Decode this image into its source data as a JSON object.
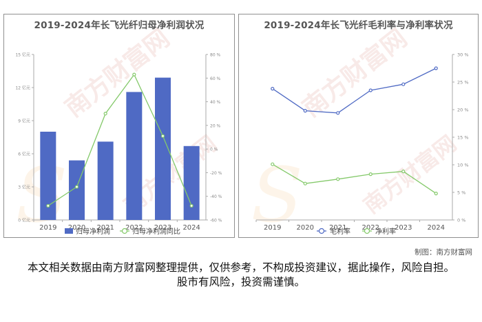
{
  "credit": "制图：南方财富网",
  "disclaimer": "本文相关数据由南方财富网整理提供，仅供参考，不构成投资建议，据此操作，风险自担。股市有风险，投资需谨慎。",
  "watermark": "南方财富网",
  "colors": {
    "bar": "#4f6ac4",
    "green": "#84c96a",
    "blue": "#4f6ac4",
    "axis": "#aaaaaa",
    "text": "#888888"
  },
  "chart_data": [
    {
      "type": "bar",
      "title": "2019-2024年长飞光纤归母净利润状况",
      "categories": [
        "2019",
        "2020",
        "2021",
        "2022",
        "2023",
        "2024"
      ],
      "ylim": [
        0,
        15
      ],
      "yticks": [
        "0 亿元",
        "3 亿元",
        "6 亿元",
        "9 亿元",
        "12 亿元",
        "15 亿元"
      ],
      "y2lim": [
        -60,
        80
      ],
      "y2ticks": [
        "-60 %",
        "-40 %",
        "-20 %",
        "0 %",
        "20 %",
        "40 %",
        "60 %",
        "80 %"
      ],
      "series": [
        {
          "name": "归母净利润",
          "type": "bar",
          "values": [
            8.0,
            5.4,
            7.1,
            11.6,
            12.9,
            6.7
          ]
        },
        {
          "name": "归母净利润同比",
          "type": "line",
          "axis": "right",
          "values": [
            -48,
            -32,
            30,
            63,
            11,
            -48
          ]
        }
      ],
      "legend": "bottom",
      "grid": false
    },
    {
      "type": "line",
      "title": "2019-2024年长飞光纤毛利率与净利率状况",
      "categories": [
        "2019",
        "2020",
        "2021",
        "2022",
        "2023",
        "2024"
      ],
      "ylim": [
        0,
        30
      ],
      "yticks": [
        "0 %",
        "5 %",
        "10 %",
        "15 %",
        "20 %",
        "25 %",
        "30 %"
      ],
      "series": [
        {
          "name": "毛利率",
          "values": [
            23.8,
            19.8,
            19.4,
            23.5,
            24.6,
            27.5
          ]
        },
        {
          "name": "净利率",
          "values": [
            10.1,
            6.6,
            7.4,
            8.3,
            8.8,
            4.8
          ]
        }
      ],
      "legend": "bottom",
      "grid": false
    }
  ]
}
